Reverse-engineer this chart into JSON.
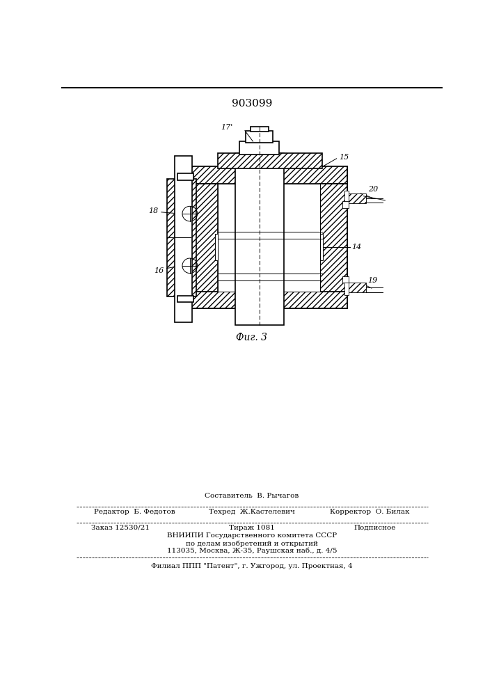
{
  "patent_number": "903099",
  "fig_label": "Фиг. 3",
  "bg_color": "#ffffff",
  "editor_line": "Редактор  Б. Федотов",
  "composer_line": "Составитель  В. Рычагов",
  "corrector_line": "Корректор  О. Билак",
  "techred_line": "Техред  Ж.Кастелевич",
  "order_line": "Заказ 12530/21",
  "tirazh_line": "Тираж 1081",
  "podpisnoe_line": "Подписное",
  "vniip1": "ВНИИПИ Государственного комитета СССР",
  "vniip2": "по делам изобретений и открытий",
  "vniip3": "113035, Москва, Ж-35, Раушская наб., д. 4/5",
  "filial_line": "Филиал ППП \"Патент\", г. Ужгород, ул. Проектная, 4"
}
